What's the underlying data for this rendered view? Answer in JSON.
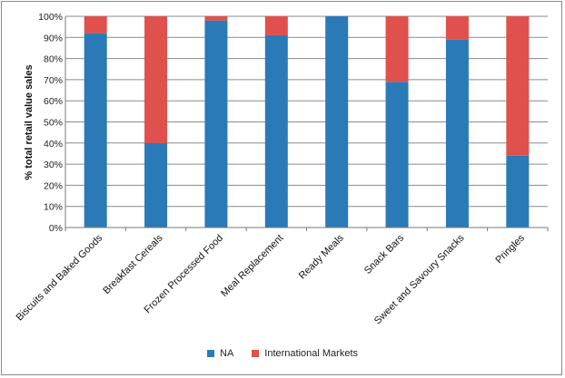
{
  "chart_data": {
    "type": "bar",
    "stacked": true,
    "ylabel": "% total retail value sales",
    "ylim": [
      0,
      100
    ],
    "yticks": [
      "0%",
      "10%",
      "20%",
      "30%",
      "40%",
      "50%",
      "60%",
      "70%",
      "80%",
      "90%",
      "100%"
    ],
    "grid": true,
    "legend_position": "bottom",
    "categories": [
      "Biscuits and Baked Goods",
      "Breakfast Cereals",
      "Frozen Processed Food",
      "Meal Replacement",
      "Ready Meals",
      "Snack Bars",
      "Sweet and Savoury Snacks",
      "Pringles"
    ],
    "series": [
      {
        "name": "NA",
        "color": "#2a7ab8",
        "values": [
          92,
          40,
          98,
          91,
          100,
          69,
          89,
          34
        ]
      },
      {
        "name": "International Markets",
        "color": "#e0504c",
        "values": [
          8,
          60,
          2,
          9,
          0,
          31,
          11,
          66
        ]
      }
    ]
  }
}
